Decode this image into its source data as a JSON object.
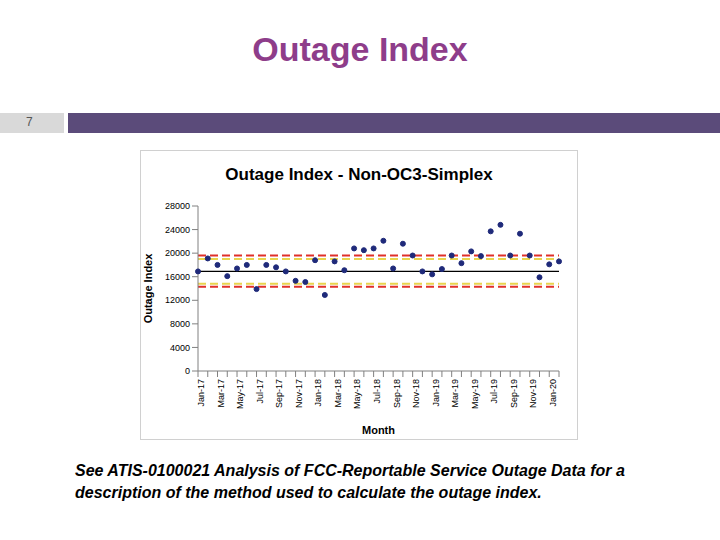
{
  "slide": {
    "title": "Outage Index",
    "page": "7",
    "caption": "See ATIS-0100021 Analysis of FCC-Reportable Service Outage Data for a description of the method used to calculate the outage index."
  },
  "chart_data": {
    "type": "scatter",
    "title": "Outage Index - Non-OC3-Simplex",
    "x_label": "Month",
    "y_label": "Outage Index",
    "categories": [
      "Jan-17",
      null,
      "Mar-17",
      null,
      "May-17",
      null,
      "Jul-17",
      null,
      "Sep-17",
      null,
      "Nov-17",
      null,
      "Jan-18",
      null,
      "Mar-18",
      null,
      "May-18",
      null,
      "Jul-18",
      null,
      "Sep-18",
      null,
      "Nov-18",
      null,
      "Jan-19",
      null,
      "Mar-19",
      null,
      "May-19",
      null,
      "Jul-19",
      null,
      "Sep-19",
      null,
      "Nov-19",
      null,
      "Jan-20",
      null
    ],
    "values": [
      16900,
      19100,
      18000,
      16100,
      17400,
      18000,
      13900,
      18000,
      17600,
      16900,
      15300,
      15100,
      18800,
      12900,
      18600,
      17100,
      20800,
      20500,
      20800,
      22100,
      17400,
      21600,
      19600,
      16900,
      16400,
      17300,
      19600,
      18300,
      20300,
      19500,
      23700,
      24800,
      19600,
      23300,
      19600,
      15900,
      18100,
      18600
    ],
    "color": "#1f2a7a",
    "marker": "circle",
    "ylim": [
      0,
      28000
    ],
    "yticks": [
      0,
      4000,
      8000,
      12000,
      16000,
      20000,
      24000,
      28000
    ],
    "grid": false,
    "reference_lines": [
      {
        "y": 16900,
        "color": "#000000",
        "line_style": "solid"
      },
      {
        "y": 19600,
        "color": "#e0302a",
        "line_style": "dashed"
      },
      {
        "y": 14300,
        "color": "#e0302a",
        "line_style": "dashed"
      },
      {
        "y": 19000,
        "color": "#e8d44d",
        "line_style": "dashed"
      },
      {
        "y": 14800,
        "color": "#e8d44d",
        "line_style": "dashed"
      }
    ]
  }
}
